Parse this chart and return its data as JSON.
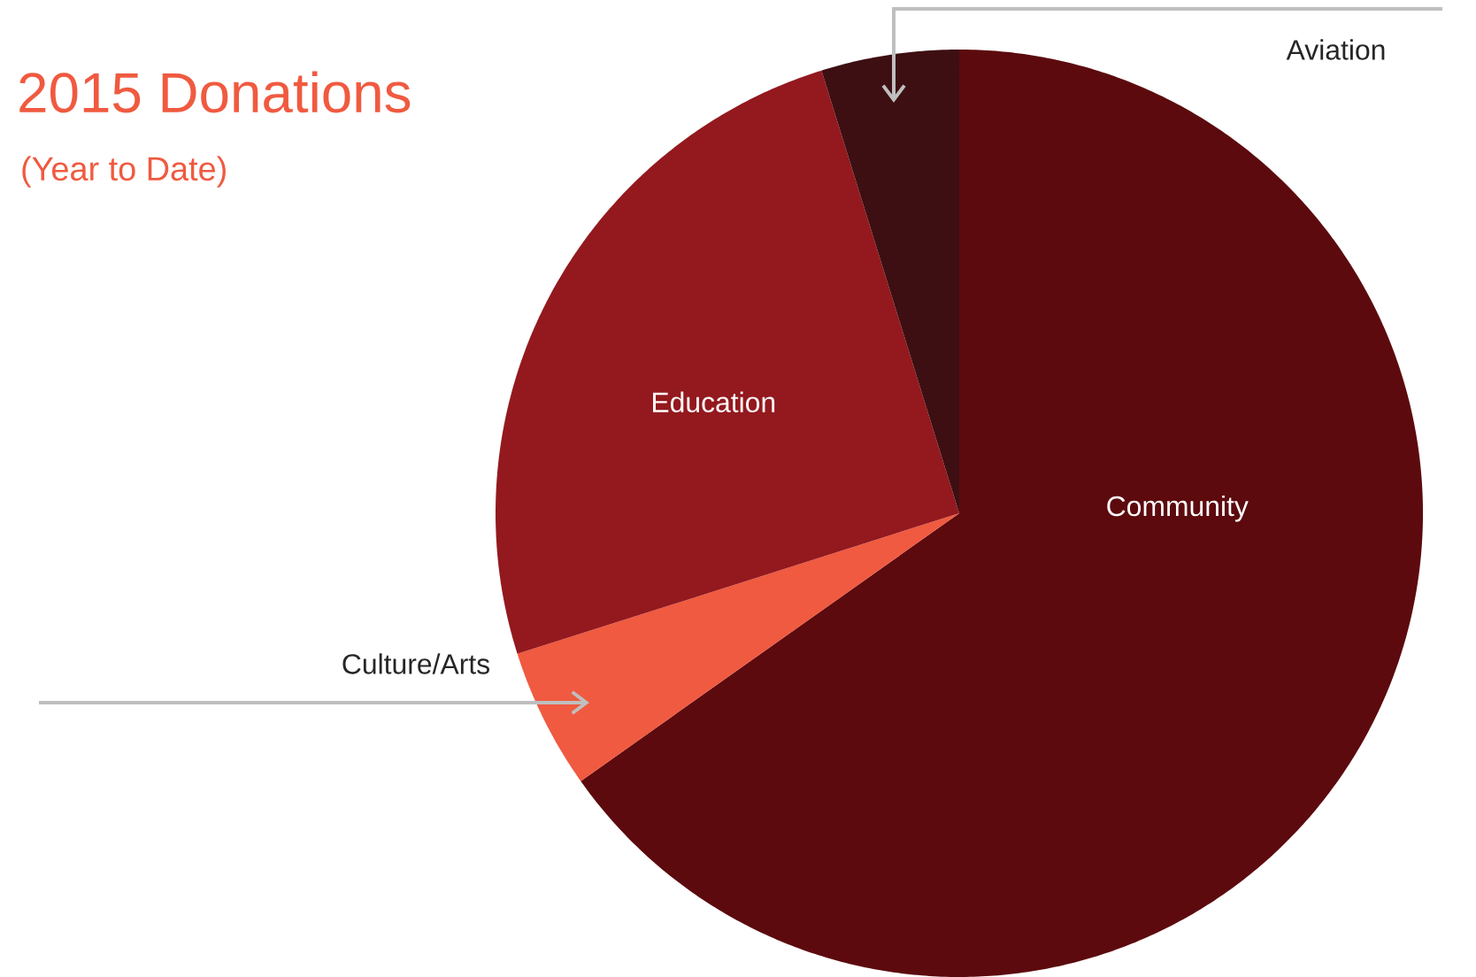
{
  "chart_data": {
    "type": "pie",
    "title": "2015 Donations",
    "subtitle": "(Year to Date)",
    "categories": [
      "Community",
      "Culture/Arts",
      "Education",
      "Aviation"
    ],
    "values": [
      65.2,
      4.9,
      25.1,
      4.8
    ],
    "colors": [
      "#5c0a0e",
      "#f05a40",
      "#93191e",
      "#3d0f12"
    ]
  }
}
